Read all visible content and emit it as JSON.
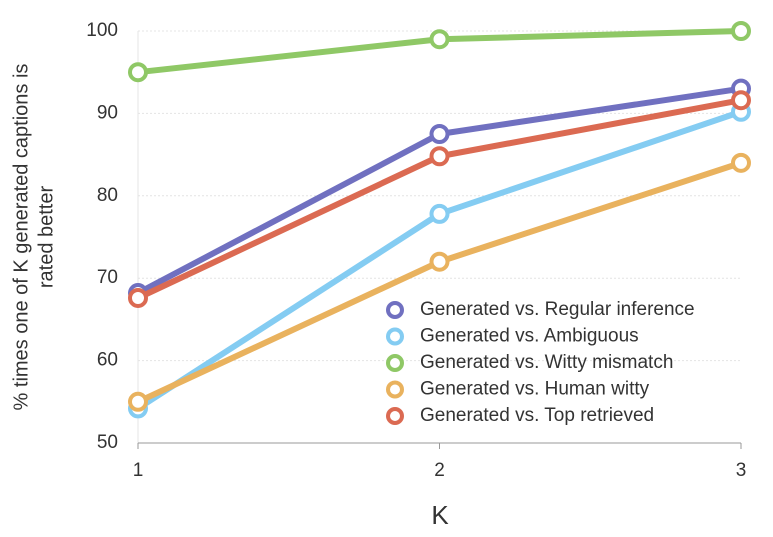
{
  "chart_data": {
    "type": "line",
    "xlabel": "K",
    "ylabel": [
      "% times one of K generated captions is",
      "rated better"
    ],
    "x": [
      1,
      2,
      3
    ],
    "xlim": [
      1,
      3
    ],
    "xticks": [
      1,
      2,
      3
    ],
    "ylim": [
      50,
      100
    ],
    "yticks": [
      50,
      60,
      70,
      80,
      90,
      100
    ],
    "grid": true,
    "legend": "lower right",
    "series": [
      {
        "name": "Generated vs. Regular inference",
        "color": "#7070c0",
        "values": [
          68.2,
          87.5,
          93
        ]
      },
      {
        "name": "Generated vs. Ambiguous",
        "color": "#84ccf2",
        "values": [
          54.2,
          77.8,
          90.2
        ]
      },
      {
        "name": "Generated vs. Witty mismatch",
        "color": "#8fc866",
        "values": [
          95,
          99,
          100
        ]
      },
      {
        "name": "Generated vs. Human witty",
        "color": "#e9b25e",
        "values": [
          55,
          72,
          84
        ]
      },
      {
        "name": "Generated vs. Top retrieved",
        "color": "#db6a52",
        "values": [
          67.6,
          84.8,
          91.6
        ]
      }
    ]
  }
}
